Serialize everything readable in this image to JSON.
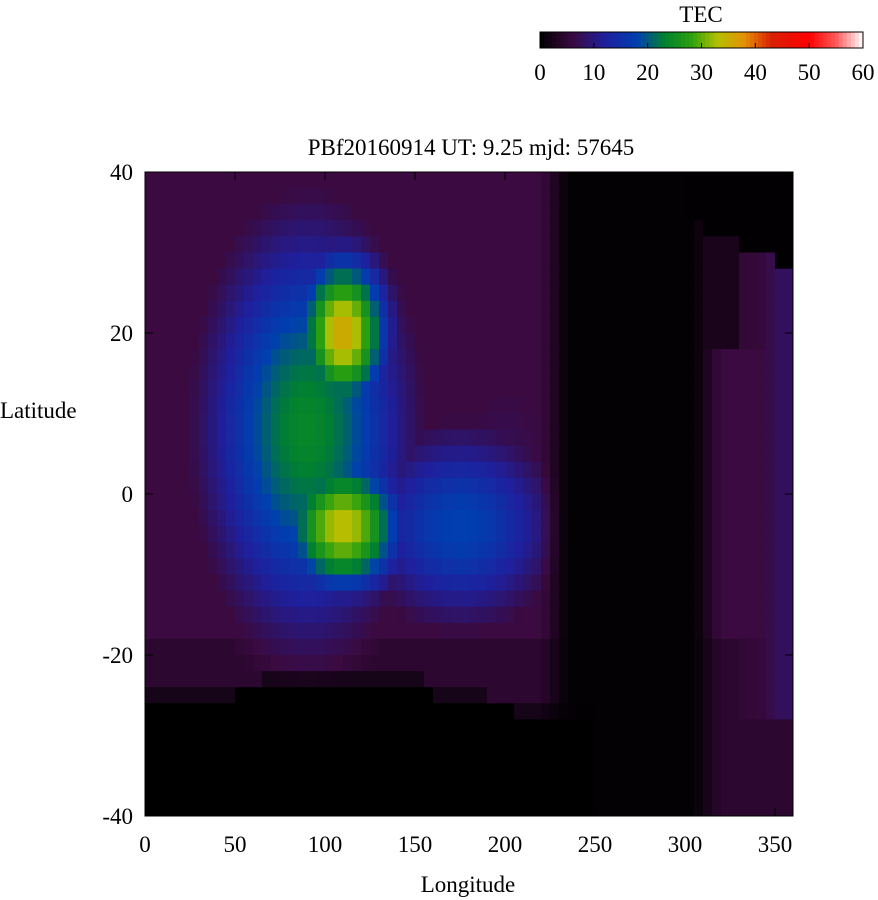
{
  "chart_data": {
    "type": "heatmap",
    "title": "PBf20160914  UT: 9.25  mjd: 57645",
    "xlabel": "Longitude",
    "ylabel": "Latitude",
    "xlim": [
      0,
      360
    ],
    "ylim": [
      -40,
      40
    ],
    "x_ticks": [
      "0",
      "50",
      "100",
      "150",
      "200",
      "250",
      "300",
      "350"
    ],
    "y_ticks": [
      "40",
      "20",
      "0",
      "-20",
      "-40"
    ],
    "grid": false,
    "colorbar": {
      "label": "TEC",
      "range": [
        0,
        60
      ],
      "ticks": [
        "0",
        "10",
        "20",
        "30",
        "40",
        "50",
        "60"
      ],
      "placement": "top-right",
      "colors": [
        {
          "value": 0,
          "color": "#000000"
        },
        {
          "value": 6,
          "color": "#3a0a40"
        },
        {
          "value": 12,
          "color": "#1f1f9c"
        },
        {
          "value": 18,
          "color": "#003fb0"
        },
        {
          "value": 23,
          "color": "#008030"
        },
        {
          "value": 28,
          "color": "#2aa010"
        },
        {
          "value": 33,
          "color": "#b4c000"
        },
        {
          "value": 38,
          "color": "#e49000"
        },
        {
          "value": 43,
          "color": "#d82000"
        },
        {
          "value": 50,
          "color": "#ff0000"
        },
        {
          "value": 55,
          "color": "#ff5a5a"
        },
        {
          "value": 60,
          "color": "#ffffff"
        }
      ]
    },
    "field": {
      "background_tec": 6,
      "features": [
        {
          "lon": 110,
          "lat": 20,
          "tec": 36,
          "sigma_lon": 18,
          "sigma_lat": 7
        },
        {
          "lon": 110,
          "lat": -4,
          "tec": 34,
          "sigma_lon": 24,
          "sigma_lat": 6
        },
        {
          "lon": 90,
          "lat": 8,
          "tec": 24,
          "sigma_lon": 40,
          "sigma_lat": 18
        },
        {
          "lon": 175,
          "lat": -4,
          "tec": 18,
          "sigma_lon": 40,
          "sigma_lat": 9
        },
        {
          "lon": 200,
          "lat": 5,
          "tec": 7,
          "sigma_lon": 40,
          "sigma_lat": 14
        }
      ],
      "dark_regions": [
        {
          "description_lon": [
            230,
            310
          ],
          "lat": [
            -40,
            40
          ],
          "tec": 0
        },
        {
          "description_lon": [
            0,
            240
          ],
          "lat": [
            -40,
            -26
          ],
          "tec": 0
        }
      ]
    }
  }
}
